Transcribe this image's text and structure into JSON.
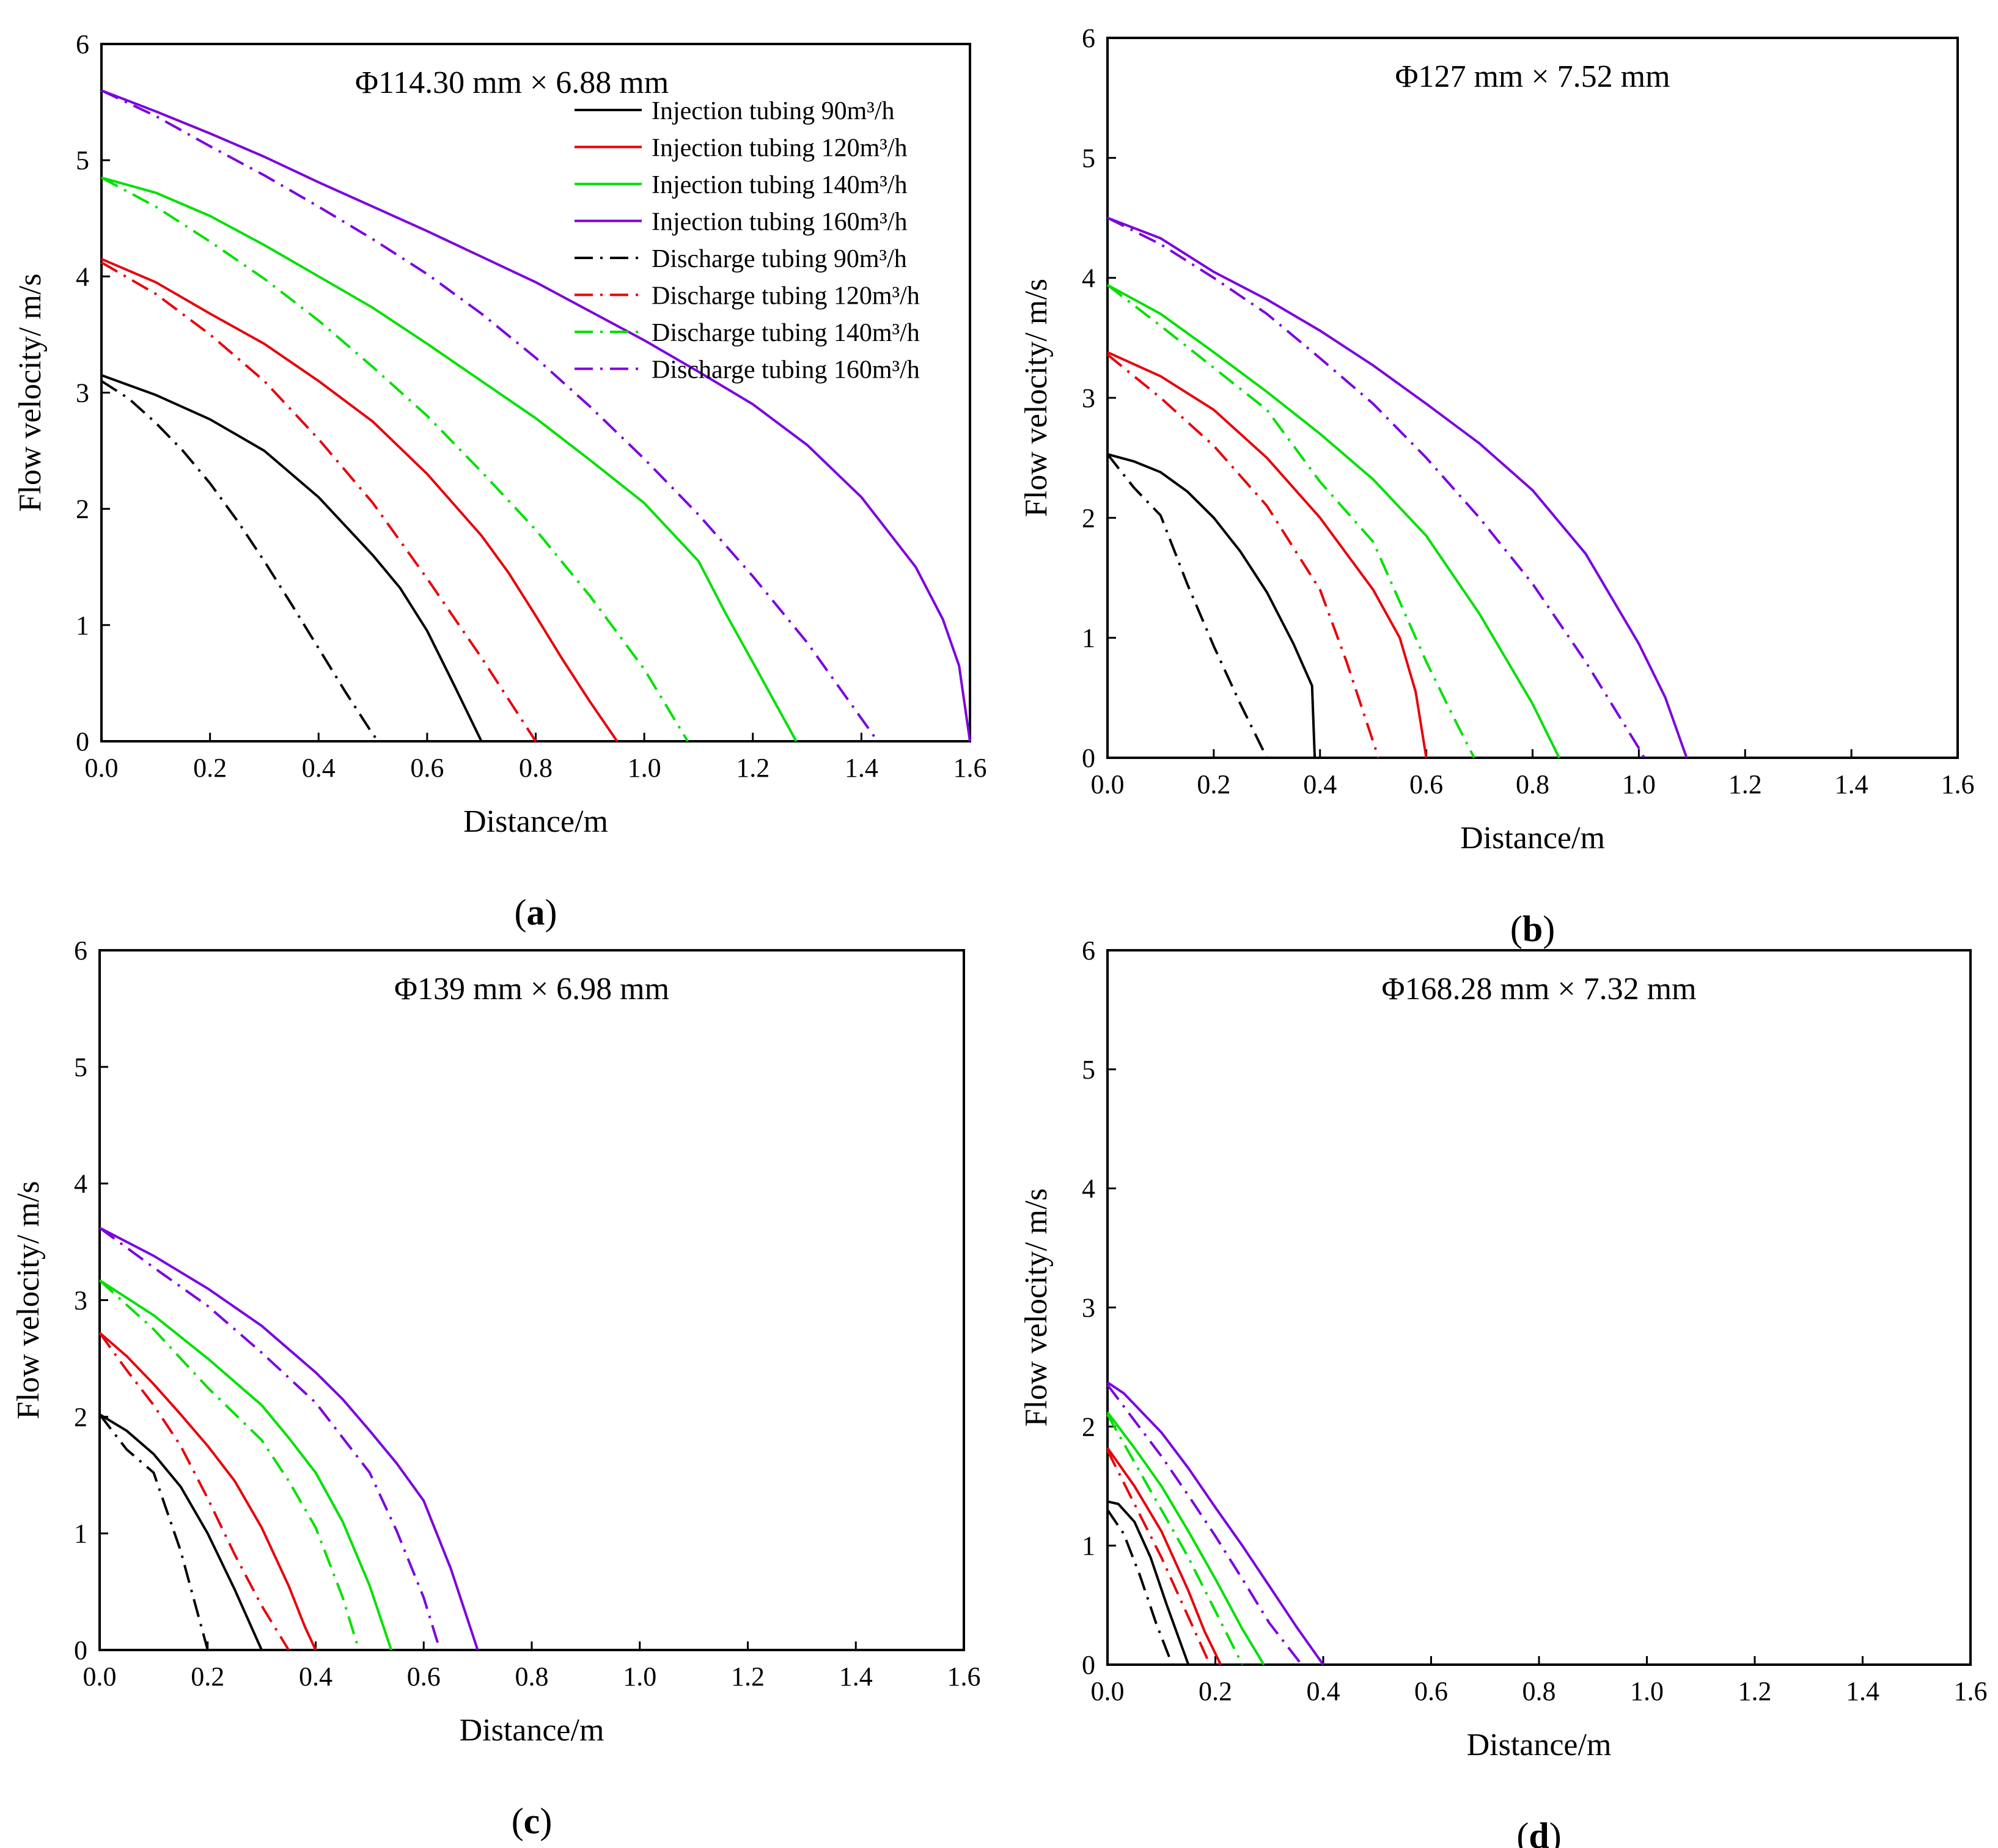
{
  "legend": [
    {
      "label": "Injection tubing 90m³/h",
      "color": "#000000",
      "dash": "solid"
    },
    {
      "label": "Injection tubing 120m³/h",
      "color": "#e8000b",
      "dash": "solid"
    },
    {
      "label": "Injection tubing 140m³/h",
      "color": "#00e000",
      "dash": "solid"
    },
    {
      "label": "Injection tubing 160m³/h",
      "color": "#7b00e0",
      "dash": "solid"
    },
    {
      "label": "Discharge tubing 90m³/h",
      "color": "#000000",
      "dash": "dashdot"
    },
    {
      "label": "Discharge tubing 120m³/h",
      "color": "#e8000b",
      "dash": "dashdot"
    },
    {
      "label": "Discharge tubing 140m³/h",
      "color": "#00e000",
      "dash": "dashdot"
    },
    {
      "label": "Discharge tubing 160m³/h",
      "color": "#7b00e0",
      "dash": "dashdot"
    }
  ],
  "chart_data": [
    {
      "type": "line",
      "panel_label": "a",
      "title": "Φ114.30 mm × 6.88 mm",
      "xlabel": "Distance/m",
      "ylabel": "Flow velocity/ m/s",
      "xlim": [
        0,
        1.6
      ],
      "ylim": [
        0,
        6
      ],
      "xticks": [
        "0.0",
        "0.2",
        "0.4",
        "0.6",
        "0.8",
        "1.0",
        "1.2",
        "1.4",
        "1.6"
      ],
      "yticks": [
        "0",
        "1",
        "2",
        "3",
        "4",
        "5",
        "6"
      ],
      "legend_position": "top-right",
      "series": [
        {
          "name": "Injection tubing 90m³/h",
          "x": [
            0,
            0.1,
            0.2,
            0.3,
            0.4,
            0.5,
            0.55,
            0.6,
            0.65,
            0.7
          ],
          "y": [
            3.15,
            2.98,
            2.77,
            2.5,
            2.1,
            1.6,
            1.32,
            0.95,
            0.48,
            0
          ]
        },
        {
          "name": "Injection tubing 120m³/h",
          "x": [
            0,
            0.1,
            0.2,
            0.3,
            0.4,
            0.5,
            0.6,
            0.7,
            0.75,
            0.8,
            0.85,
            0.9,
            0.95
          ],
          "y": [
            4.15,
            3.95,
            3.68,
            3.42,
            3.1,
            2.75,
            2.3,
            1.77,
            1.45,
            1.08,
            0.7,
            0.34,
            0
          ]
        },
        {
          "name": "Injection tubing 140m³/h",
          "x": [
            0,
            0.1,
            0.2,
            0.3,
            0.4,
            0.5,
            0.6,
            0.7,
            0.8,
            0.9,
            1.0,
            1.1,
            1.15,
            1.2,
            1.28
          ],
          "y": [
            4.85,
            4.72,
            4.52,
            4.27,
            4.0,
            3.73,
            3.42,
            3.1,
            2.78,
            2.42,
            2.05,
            1.55,
            1.1,
            0.68,
            0
          ]
        },
        {
          "name": "Injection tubing 160m³/h",
          "x": [
            0,
            0.1,
            0.2,
            0.3,
            0.4,
            0.5,
            0.6,
            0.7,
            0.8,
            0.9,
            1.0,
            1.1,
            1.2,
            1.3,
            1.4,
            1.5,
            1.55,
            1.58,
            1.6
          ],
          "y": [
            5.6,
            5.42,
            5.23,
            5.03,
            4.81,
            4.6,
            4.39,
            4.17,
            3.95,
            3.7,
            3.45,
            3.18,
            2.9,
            2.55,
            2.1,
            1.5,
            1.05,
            0.65,
            0
          ]
        },
        {
          "name": "Discharge tubing 90m³/h",
          "x": [
            0,
            0.05,
            0.1,
            0.15,
            0.2,
            0.25,
            0.3,
            0.35,
            0.4,
            0.45,
            0.5,
            0.51
          ],
          "y": [
            3.1,
            2.95,
            2.74,
            2.5,
            2.22,
            1.9,
            1.55,
            1.18,
            0.8,
            0.42,
            0.06,
            0
          ]
        },
        {
          "name": "Discharge tubing 120m³/h",
          "x": [
            0,
            0.1,
            0.2,
            0.3,
            0.4,
            0.5,
            0.6,
            0.7,
            0.8
          ],
          "y": [
            4.12,
            3.85,
            3.5,
            3.1,
            2.6,
            2.05,
            1.4,
            0.72,
            0
          ]
        },
        {
          "name": "Discharge tubing 140m³/h",
          "x": [
            0,
            0.1,
            0.2,
            0.3,
            0.4,
            0.5,
            0.6,
            0.7,
            0.8,
            0.9,
            1.0,
            1.08
          ],
          "y": [
            4.85,
            4.6,
            4.3,
            3.98,
            3.62,
            3.22,
            2.8,
            2.32,
            1.82,
            1.25,
            0.62,
            0
          ]
        },
        {
          "name": "Discharge tubing 160m³/h",
          "x": [
            0,
            0.1,
            0.2,
            0.3,
            0.4,
            0.5,
            0.6,
            0.7,
            0.8,
            0.9,
            1.0,
            1.1,
            1.2,
            1.3,
            1.43
          ],
          "y": [
            5.6,
            5.38,
            5.12,
            4.87,
            4.6,
            4.32,
            4.02,
            3.68,
            3.3,
            2.88,
            2.43,
            1.95,
            1.42,
            0.85,
            0
          ]
        }
      ]
    },
    {
      "type": "line",
      "panel_label": "b",
      "title": "Φ127 mm × 7.52 mm",
      "xlabel": "Distance/m",
      "ylabel": "Flow velocity/ m/s",
      "xlim": [
        0,
        1.6
      ],
      "ylim": [
        0,
        6
      ],
      "xticks": [
        "0.0",
        "0.2",
        "0.4",
        "0.6",
        "0.8",
        "1.0",
        "1.2",
        "1.4",
        "1.6"
      ],
      "yticks": [
        "0",
        "1",
        "2",
        "3",
        "4",
        "5",
        "6"
      ],
      "series": [
        {
          "name": "Injection tubing 90m³/h",
          "x": [
            0,
            0.05,
            0.1,
            0.15,
            0.2,
            0.25,
            0.3,
            0.35,
            0.37,
            0.385,
            0.39
          ],
          "y": [
            2.53,
            2.47,
            2.38,
            2.22,
            2.0,
            1.72,
            1.38,
            0.95,
            0.75,
            0.6,
            0
          ]
        },
        {
          "name": "Injection tubing 120m³/h",
          "x": [
            0,
            0.1,
            0.2,
            0.3,
            0.4,
            0.45,
            0.5,
            0.55,
            0.58,
            0.6
          ],
          "y": [
            3.38,
            3.18,
            2.9,
            2.5,
            2.0,
            1.7,
            1.4,
            1.0,
            0.55,
            0
          ]
        },
        {
          "name": "Injection tubing 140m³/h",
          "x": [
            0,
            0.1,
            0.2,
            0.3,
            0.4,
            0.5,
            0.6,
            0.7,
            0.8,
            0.85
          ],
          "y": [
            3.94,
            3.7,
            3.38,
            3.05,
            2.7,
            2.32,
            1.85,
            1.2,
            0.45,
            0
          ]
        },
        {
          "name": "Injection tubing 160m³/h",
          "x": [
            0,
            0.1,
            0.2,
            0.3,
            0.4,
            0.5,
            0.6,
            0.7,
            0.8,
            0.9,
            1.0,
            1.05,
            1.09
          ],
          "y": [
            4.5,
            4.33,
            4.05,
            3.82,
            3.56,
            3.27,
            2.95,
            2.62,
            2.23,
            1.7,
            0.95,
            0.5,
            0
          ]
        },
        {
          "name": "Discharge tubing 90m³/h",
          "x": [
            0,
            0.05,
            0.1,
            0.15,
            0.2,
            0.25,
            0.3
          ],
          "y": [
            2.53,
            2.25,
            2.02,
            1.45,
            0.93,
            0.45,
            0
          ]
        },
        {
          "name": "Discharge tubing 120m³/h",
          "x": [
            0,
            0.1,
            0.2,
            0.3,
            0.4,
            0.45,
            0.51
          ],
          "y": [
            3.36,
            3.0,
            2.6,
            2.1,
            1.4,
            0.8,
            0
          ]
        },
        {
          "name": "Discharge tubing 140m³/h",
          "x": [
            0,
            0.1,
            0.2,
            0.3,
            0.4,
            0.5,
            0.55,
            0.6,
            0.65,
            0.69
          ],
          "y": [
            3.94,
            3.6,
            3.25,
            2.9,
            2.3,
            1.8,
            1.3,
            0.8,
            0.35,
            0
          ]
        },
        {
          "name": "Discharge tubing 160m³/h",
          "x": [
            0,
            0.1,
            0.2,
            0.3,
            0.4,
            0.5,
            0.6,
            0.7,
            0.8,
            0.9,
            1.0,
            1.01
          ],
          "y": [
            4.5,
            4.28,
            4.0,
            3.7,
            3.33,
            2.95,
            2.5,
            2.0,
            1.45,
            0.8,
            0.08,
            0
          ]
        }
      ]
    },
    {
      "type": "line",
      "panel_label": "c",
      "title": "Φ139 mm × 6.98 mm",
      "xlabel": "Distance/m",
      "ylabel": "Flow velocity/ m/s",
      "xlim": [
        0,
        1.6
      ],
      "ylim": [
        0,
        6
      ],
      "xticks": [
        "0.0",
        "0.2",
        "0.4",
        "0.6",
        "0.8",
        "1.0",
        "1.2",
        "1.4",
        "1.6"
      ],
      "yticks": [
        "0",
        "1",
        "2",
        "3",
        "4",
        "5",
        "6"
      ],
      "series": [
        {
          "name": "Injection tubing 90m³/h",
          "x": [
            0,
            0.05,
            0.1,
            0.15,
            0.2,
            0.25,
            0.3
          ],
          "y": [
            2.02,
            1.88,
            1.68,
            1.4,
            1.0,
            0.52,
            0
          ]
        },
        {
          "name": "Injection tubing 120m³/h",
          "x": [
            0,
            0.05,
            0.1,
            0.15,
            0.2,
            0.25,
            0.3,
            0.35,
            0.38,
            0.4
          ],
          "y": [
            2.72,
            2.52,
            2.28,
            2.02,
            1.75,
            1.45,
            1.05,
            0.55,
            0.2,
            0
          ]
        },
        {
          "name": "Injection tubing 140m³/h",
          "x": [
            0,
            0.1,
            0.2,
            0.3,
            0.35,
            0.4,
            0.45,
            0.5,
            0.54
          ],
          "y": [
            3.17,
            2.87,
            2.5,
            2.1,
            1.82,
            1.52,
            1.1,
            0.55,
            0
          ]
        },
        {
          "name": "Injection tubing 160m³/h",
          "x": [
            0,
            0.1,
            0.2,
            0.3,
            0.35,
            0.4,
            0.45,
            0.5,
            0.55,
            0.6,
            0.65,
            0.7
          ],
          "y": [
            3.62,
            3.38,
            3.1,
            2.78,
            2.58,
            2.38,
            2.15,
            1.88,
            1.6,
            1.28,
            0.7,
            0
          ]
        },
        {
          "name": "Discharge tubing 90m³/h",
          "x": [
            0,
            0.05,
            0.1,
            0.15,
            0.2
          ],
          "y": [
            2.02,
            1.72,
            1.52,
            0.85,
            0
          ]
        },
        {
          "name": "Discharge tubing 120m³/h",
          "x": [
            0,
            0.05,
            0.1,
            0.15,
            0.2,
            0.25,
            0.3,
            0.35
          ],
          "y": [
            2.72,
            2.4,
            2.1,
            1.75,
            1.3,
            0.82,
            0.38,
            0
          ]
        },
        {
          "name": "Discharge tubing 140m³/h",
          "x": [
            0,
            0.1,
            0.2,
            0.3,
            0.35,
            0.4,
            0.45,
            0.48
          ],
          "y": [
            3.17,
            2.75,
            2.25,
            1.8,
            1.45,
            1.05,
            0.45,
            0
          ]
        },
        {
          "name": "Discharge tubing 160m³/h",
          "x": [
            0,
            0.1,
            0.2,
            0.3,
            0.4,
            0.5,
            0.55,
            0.6,
            0.63
          ],
          "y": [
            3.62,
            3.28,
            2.95,
            2.55,
            2.12,
            1.52,
            1.02,
            0.45,
            0
          ]
        }
      ]
    },
    {
      "type": "line",
      "panel_label": "d",
      "title": "Φ168.28 mm × 7.32 mm",
      "xlabel": "Distance/m",
      "ylabel": "Flow velocity/ m/s",
      "xlim": [
        0,
        1.6
      ],
      "ylim": [
        0,
        6
      ],
      "xticks": [
        "0.0",
        "0.2",
        "0.4",
        "0.6",
        "0.8",
        "1.0",
        "1.2",
        "1.4",
        "1.6"
      ],
      "yticks": [
        "0",
        "1",
        "2",
        "3",
        "4",
        "5",
        "6"
      ],
      "series": [
        {
          "name": "Injection tubing 90m³/h",
          "x": [
            0,
            0.02,
            0.05,
            0.08,
            0.11,
            0.15
          ],
          "y": [
            1.37,
            1.35,
            1.2,
            0.9,
            0.5,
            0
          ]
        },
        {
          "name": "Injection tubing 120m³/h",
          "x": [
            0,
            0.05,
            0.1,
            0.15,
            0.18,
            0.21
          ],
          "y": [
            1.82,
            1.5,
            1.12,
            0.62,
            0.28,
            0
          ]
        },
        {
          "name": "Injection tubing 140m³/h",
          "x": [
            0,
            0.05,
            0.1,
            0.15,
            0.2,
            0.25,
            0.29
          ],
          "y": [
            2.12,
            1.82,
            1.5,
            1.12,
            0.72,
            0.3,
            0
          ]
        },
        {
          "name": "Injection tubing 160m³/h",
          "x": [
            0,
            0.03,
            0.1,
            0.15,
            0.2,
            0.25,
            0.3,
            0.35,
            0.4
          ],
          "y": [
            2.37,
            2.28,
            1.95,
            1.65,
            1.32,
            1.0,
            0.66,
            0.32,
            0
          ]
        },
        {
          "name": "Discharge tubing 90m³/h",
          "x": [
            0,
            0.03,
            0.06,
            0.09,
            0.12
          ],
          "y": [
            1.3,
            1.1,
            0.75,
            0.35,
            0
          ]
        },
        {
          "name": "Discharge tubing 120m³/h",
          "x": [
            0,
            0.05,
            0.1,
            0.15,
            0.19
          ],
          "y": [
            1.8,
            1.35,
            0.9,
            0.4,
            0
          ]
        },
        {
          "name": "Discharge tubing 140m³/h",
          "x": [
            0,
            0.05,
            0.1,
            0.15,
            0.2,
            0.25
          ],
          "y": [
            2.1,
            1.7,
            1.3,
            0.9,
            0.45,
            0
          ]
        },
        {
          "name": "Discharge tubing 160m³/h",
          "x": [
            0,
            0.05,
            0.1,
            0.15,
            0.2,
            0.25,
            0.3,
            0.36
          ],
          "y": [
            2.35,
            2.05,
            1.75,
            1.42,
            1.08,
            0.72,
            0.35,
            0
          ]
        }
      ]
    }
  ]
}
